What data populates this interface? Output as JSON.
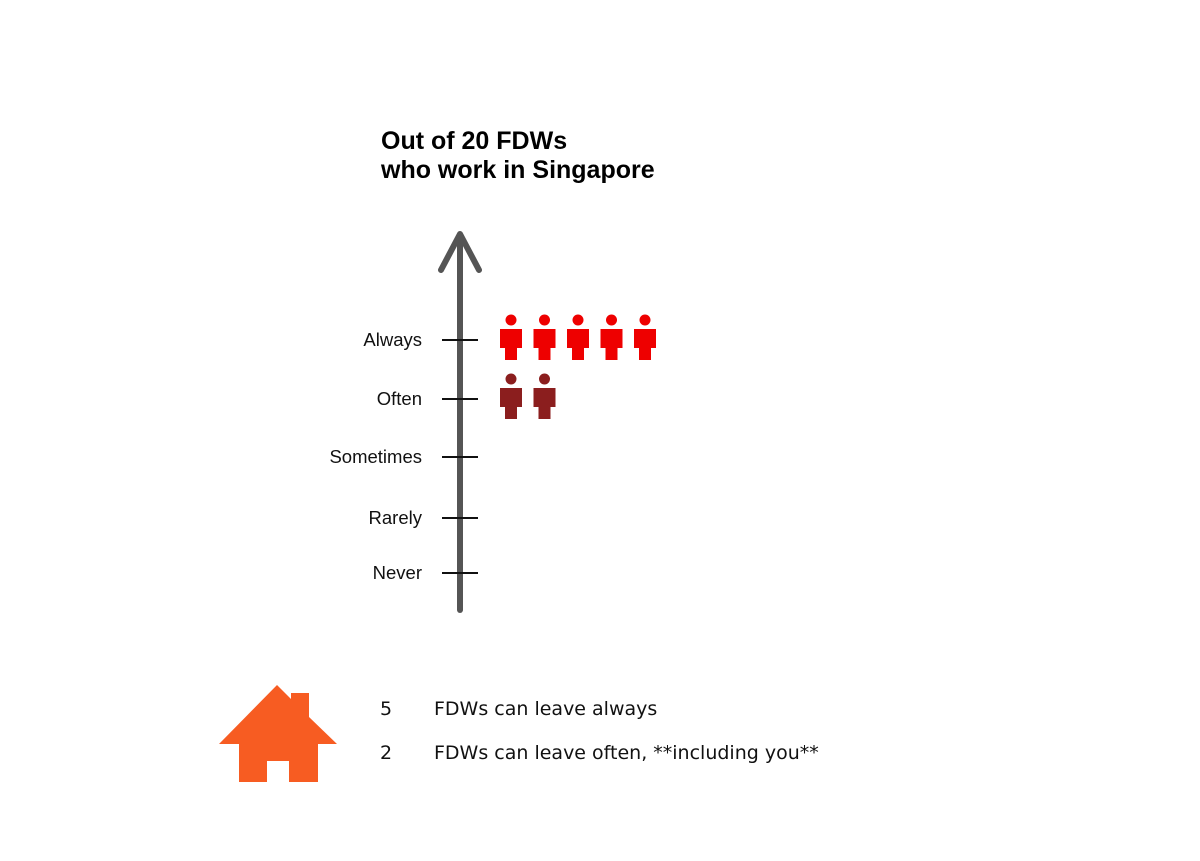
{
  "chart_data": {
    "type": "pictogram",
    "title_lines": [
      "Out of 20 FDWs",
      "who work in Singapore"
    ],
    "categories": [
      "Always",
      "Often",
      "Sometimes",
      "Rarely",
      "Never"
    ],
    "values": [
      5,
      2,
      0,
      0,
      0
    ],
    "colors": {
      "Always": "#ee0000",
      "Often": "#8b1e1e",
      "Sometimes": "#cc4444",
      "Rarely": "#cc4444",
      "Never": "#cc4444"
    },
    "axis_color": "#555555",
    "icon": "person-icon"
  },
  "legend": {
    "icon": "house-icon",
    "icon_color": "#f75c22",
    "rows": [
      {
        "count": "5",
        "text": "FDWs can leave always"
      },
      {
        "count": "2",
        "text": "FDWs can leave often, **including you**"
      }
    ]
  }
}
